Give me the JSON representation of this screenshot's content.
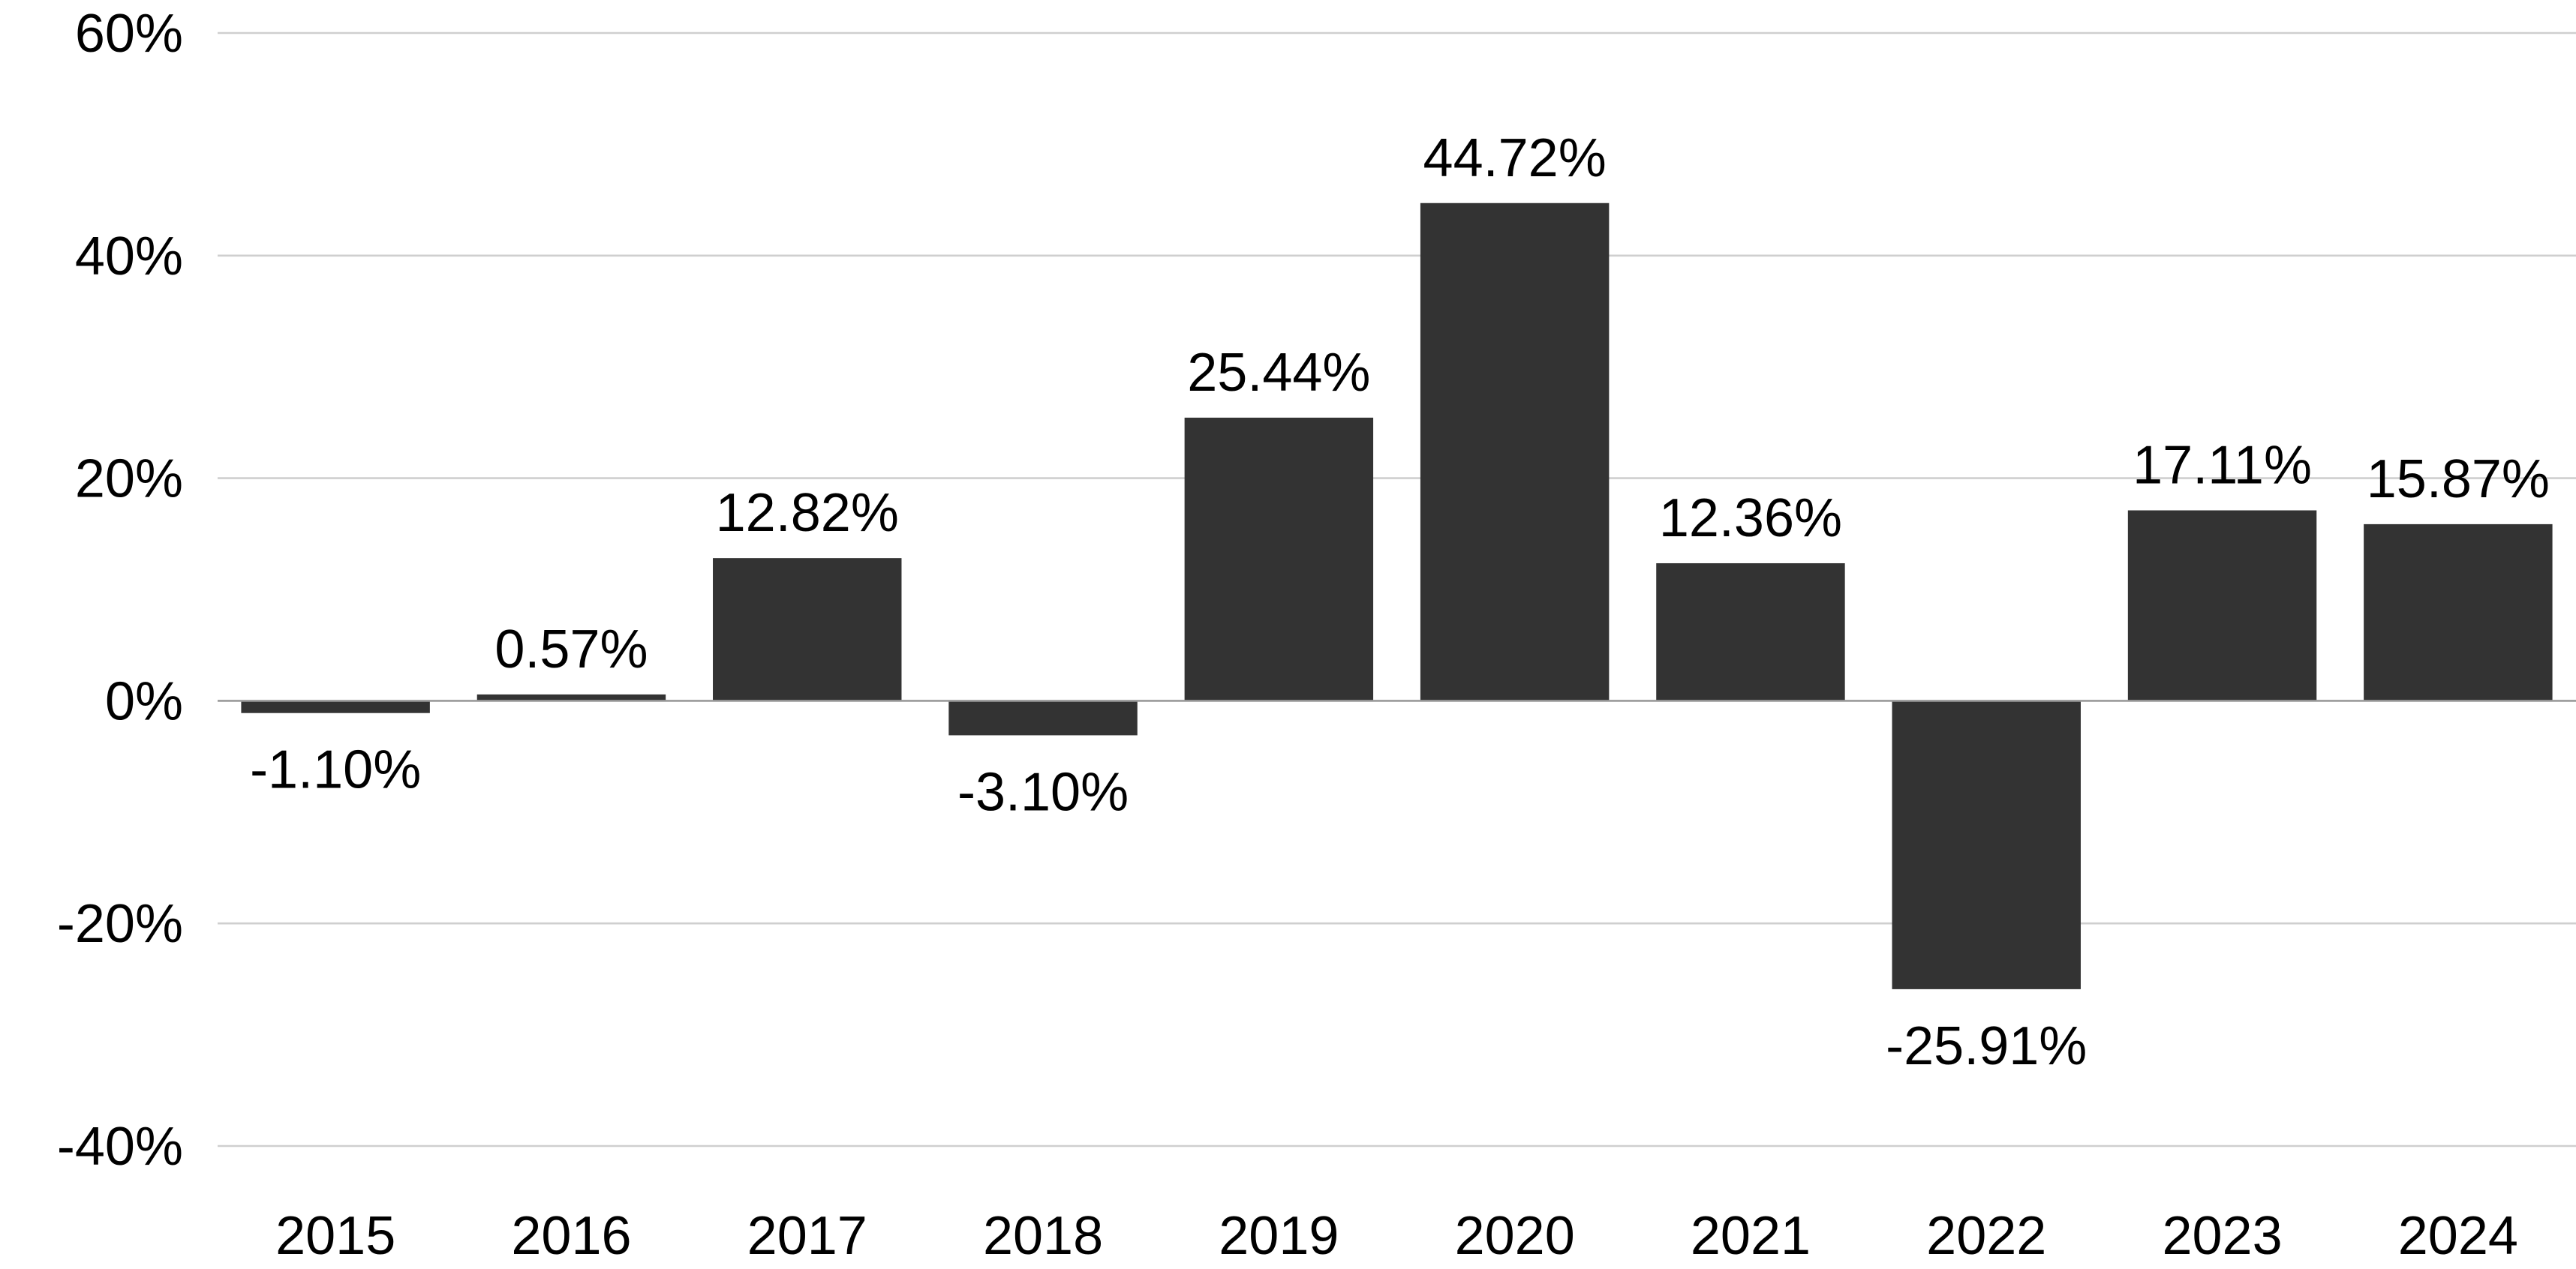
{
  "chart_data": {
    "type": "bar",
    "categories": [
      "2015",
      "2016",
      "2017",
      "2018",
      "2019",
      "2020",
      "2021",
      "2022",
      "2023",
      "2024"
    ],
    "values": [
      -1.1,
      0.57,
      12.82,
      -3.1,
      25.44,
      44.72,
      12.36,
      -25.91,
      17.11,
      15.87
    ],
    "data_labels": [
      "-1.10%",
      "0.57%",
      "12.82%",
      "-3.10%",
      "25.44%",
      "44.72%",
      "12.36%",
      "-25.91%",
      "17.11%",
      "15.87%"
    ],
    "ylim": [
      -40,
      60
    ],
    "yticks": [
      -40,
      -20,
      0,
      20,
      40,
      60
    ],
    "ytick_labels": [
      "-40%",
      "-20%",
      "0%",
      "20%",
      "40%",
      "60%"
    ],
    "title": "",
    "xlabel": "",
    "ylabel": "",
    "grid": true,
    "legend": "none",
    "colors": {
      "bar": "#333333",
      "grid": "#cfcfcf",
      "zero_line": "#9a9a9a",
      "text": "#000000"
    }
  }
}
